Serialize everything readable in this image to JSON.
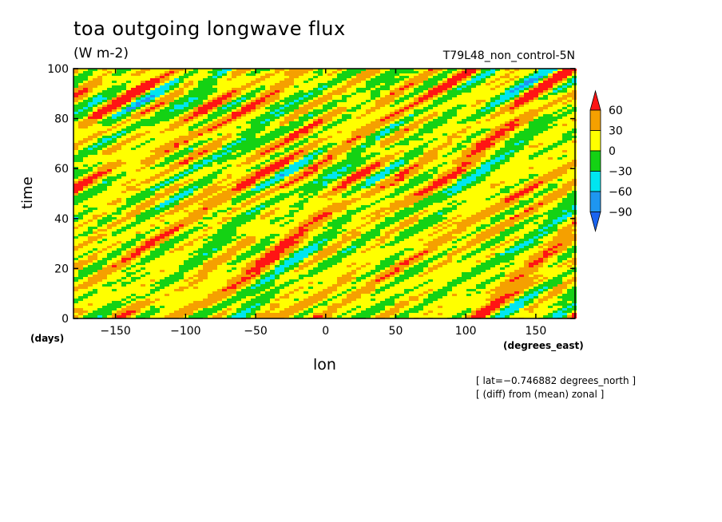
{
  "chart_data": {
    "type": "heatmap",
    "title": "toa outgoing longwave flux",
    "units": "(W m-2)",
    "run_label": "T79L48_non_control-5N",
    "xlabel": "lon",
    "ylabel": "time",
    "x_units": "(degrees_east)",
    "y_units": "(days)",
    "xlim": [
      -180,
      178
    ],
    "ylim": [
      0,
      100
    ],
    "xticks": [
      -150,
      -100,
      -50,
      0,
      50,
      100,
      150
    ],
    "xtick_labels": [
      "−150",
      "−100",
      "−50",
      "0",
      "50",
      "100",
      "150"
    ],
    "yticks": [
      0,
      20,
      40,
      60,
      80,
      100
    ],
    "ytick_labels": [
      "0",
      "20",
      "40",
      "60",
      "80",
      "100"
    ],
    "colorbar": {
      "levels": [
        -90,
        -60,
        -30,
        0,
        30,
        60
      ],
      "level_labels": [
        "−90",
        "−60",
        "−30",
        "0",
        "30",
        "60"
      ],
      "colors": [
        "#1a64f0",
        "#1e96f0",
        "#00e6f0",
        "#14d214",
        "#ffff00",
        "#f5a000",
        "#ff1414"
      ],
      "extend": "both"
    },
    "field_note": "pseudo-random anomaly field with eastward-propagating streaks (values in W m-2, range roughly -90 to +60)",
    "annotations": [
      "[ lat=−0.746882 degrees_north ]",
      "[ (diff) from (mean) zonal ]"
    ]
  }
}
